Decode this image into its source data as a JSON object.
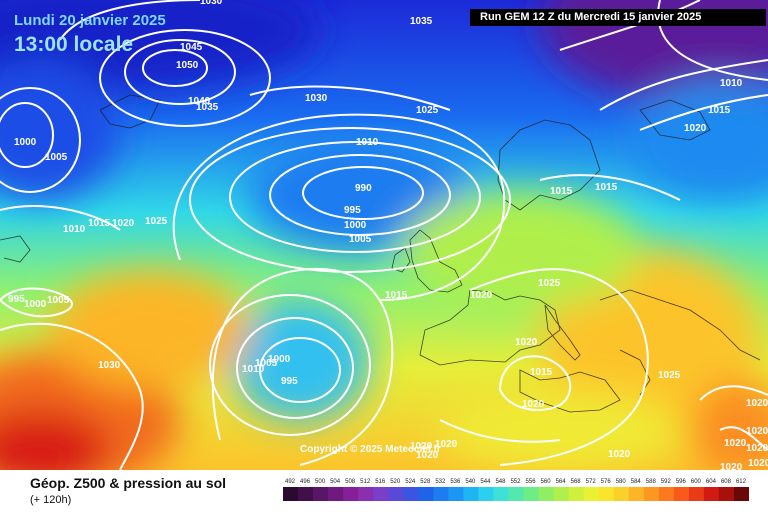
{
  "header": {
    "date": "Lundi 20 janvier 2025",
    "local_time": "13:00 locale",
    "run": "Run GEM 12 Z du Mercredi 15 janvier 2025"
  },
  "map": {
    "copyright": "Copyright © 2025 Meteociel.fr",
    "isobar_labels": [
      "1030",
      "1035",
      "1045",
      "1050",
      "1040",
      "1035",
      "1000",
      "1005",
      "1030",
      "1025",
      "1010",
      "990",
      "995",
      "1000",
      "1005",
      "1010",
      "1015",
      "1020",
      "1025",
      "1015",
      "1015",
      "1020",
      "995",
      "1000",
      "1005",
      "1030",
      "1010",
      "1000",
      "1005",
      "995",
      "1015",
      "1020",
      "1025",
      "1020",
      "1015",
      "1020",
      "1025",
      "1020",
      "1020",
      "1020",
      "1020",
      "1020",
      "1020",
      "1010",
      "1015",
      "1020",
      "1020",
      "1020",
      "1020"
    ]
  },
  "legend": {
    "title": "Géop. Z500 & pression au sol",
    "lead_time": "(+ 120h)",
    "scale_ticks": [
      "492",
      "496",
      "500",
      "504",
      "508",
      "512",
      "516",
      "520",
      "524",
      "528",
      "532",
      "536",
      "540",
      "544",
      "548",
      "552",
      "556",
      "560",
      "564",
      "568",
      "572",
      "576",
      "580",
      "584",
      "588",
      "592",
      "596",
      "600",
      "604",
      "608",
      "612"
    ],
    "scale_colors": [
      "#2a0a2e",
      "#41104a",
      "#5a1666",
      "#701a80",
      "#861f99",
      "#8a2fb0",
      "#7a3ec8",
      "#5a48d6",
      "#3c55e0",
      "#1f63ea",
      "#1c7cf0",
      "#1c96f2",
      "#20b4f2",
      "#2ccfee",
      "#3fe0d8",
      "#52e8ae",
      "#6eec86",
      "#8fee64",
      "#b0ef4c",
      "#cff03c",
      "#eaf034",
      "#fbe42e",
      "#fcd02a",
      "#fcb526",
      "#fc9822",
      "#fc7a1e",
      "#f85a1a",
      "#ea3a16",
      "#d01a12",
      "#a8100c",
      "#6a0808"
    ]
  }
}
